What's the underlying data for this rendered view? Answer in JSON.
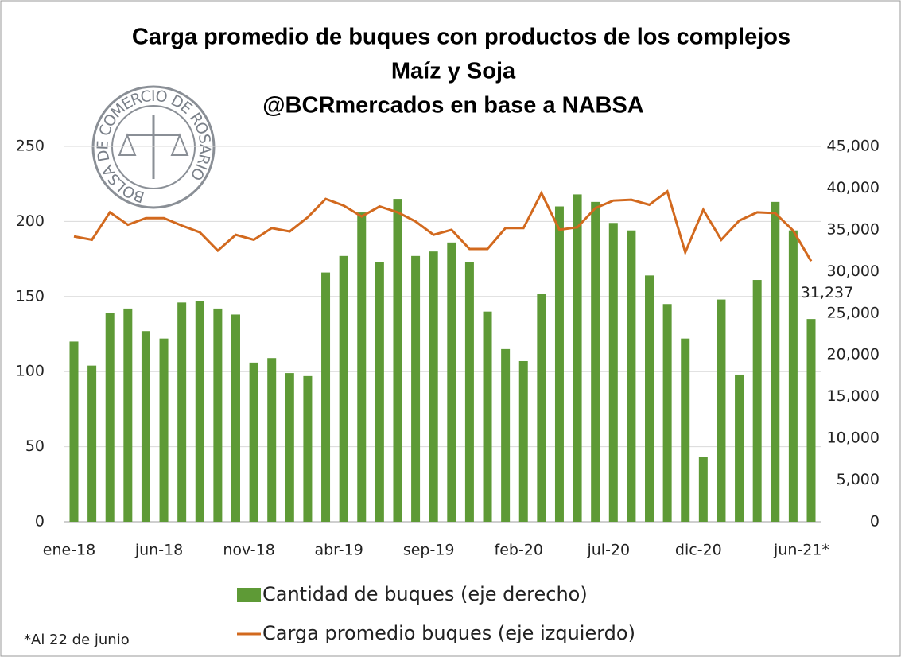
{
  "chart_data": {
    "type": "bar-line",
    "title": [
      "Carga promedio de buques con productos de los complejos",
      "Maíz y Soja",
      "@BCRmercados en base a NABSA"
    ],
    "logo_text": "BOLSA DE COMERCIO DE ROSARIO",
    "footnote": "*Al 22 de junio",
    "categories": [
      "ene-18",
      null,
      null,
      null,
      null,
      "jun-18",
      null,
      null,
      null,
      null,
      "nov-18",
      null,
      null,
      null,
      null,
      "abr-19",
      null,
      null,
      null,
      null,
      "sep-19",
      null,
      null,
      null,
      null,
      "feb-20",
      null,
      null,
      null,
      null,
      "jul-20",
      null,
      null,
      null,
      null,
      "dic-20",
      null,
      null,
      null,
      null,
      null,
      "jun-21*"
    ],
    "series": [
      {
        "name": "Cantidad de buques (eje derecho)",
        "type": "bar",
        "color": "#5e9a36",
        "values": [
          120,
          104,
          139,
          142,
          127,
          122,
          146,
          147,
          142,
          138,
          106,
          109,
          99,
          97,
          166,
          177,
          206,
          173,
          215,
          177,
          180,
          186,
          173,
          140,
          115,
          107,
          152,
          210,
          218,
          213,
          199,
          194,
          164,
          145,
          122,
          43,
          148,
          98,
          161,
          213,
          194,
          135
        ]
      },
      {
        "name": "Carga promedio buques (eje izquierdo)",
        "type": "line",
        "axis": "y2",
        "color": "#d2691e",
        "values": [
          34200,
          33800,
          37100,
          35600,
          36400,
          36400,
          35500,
          34700,
          32500,
          34400,
          33800,
          35200,
          34800,
          36500,
          38700,
          37900,
          36600,
          37800,
          37100,
          36000,
          34400,
          35000,
          32700,
          32700,
          35200,
          35200,
          39400,
          35000,
          35300,
          37600,
          38500,
          38600,
          38000,
          39600,
          32300,
          37400,
          33800,
          36100,
          37100,
          37000,
          34900,
          31237
        ],
        "value_labels": [
          null,
          null,
          null,
          null,
          null,
          null,
          null,
          null,
          null,
          null,
          null,
          null,
          null,
          null,
          null,
          null,
          null,
          null,
          null,
          null,
          null,
          null,
          null,
          null,
          null,
          null,
          null,
          null,
          null,
          null,
          null,
          null,
          null,
          null,
          null,
          null,
          null,
          null,
          null,
          null,
          null,
          "31,237"
        ]
      }
    ],
    "ylim": [
      0,
      250
    ],
    "yticks": [
      0,
      50,
      100,
      150,
      200,
      250
    ],
    "y2lim": [
      0,
      45000
    ],
    "y2ticks": [
      0,
      {
        "value": 5000,
        "label": "5,000"
      },
      {
        "value": 10000,
        "label": "10,000"
      },
      {
        "value": 15000,
        "label": "15,000"
      },
      {
        "value": 20000,
        "label": "20,000"
      },
      {
        "value": 25000,
        "label": "25,000"
      },
      {
        "value": 30000,
        "label": "30,000"
      },
      {
        "value": 35000,
        "label": "35,000"
      },
      {
        "value": 40000,
        "label": "40,000"
      },
      {
        "value": 45000,
        "label": "45,000"
      }
    ],
    "grid": true
  }
}
